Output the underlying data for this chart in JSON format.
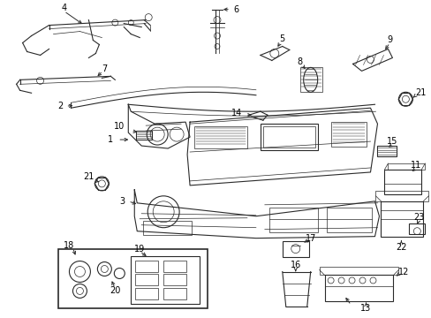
{
  "bg_color": "#ffffff",
  "line_color": "#2a2a2a",
  "label_color": "#000000",
  "fig_width": 4.89,
  "fig_height": 3.6,
  "dpi": 100,
  "border_color": "#cccccc"
}
